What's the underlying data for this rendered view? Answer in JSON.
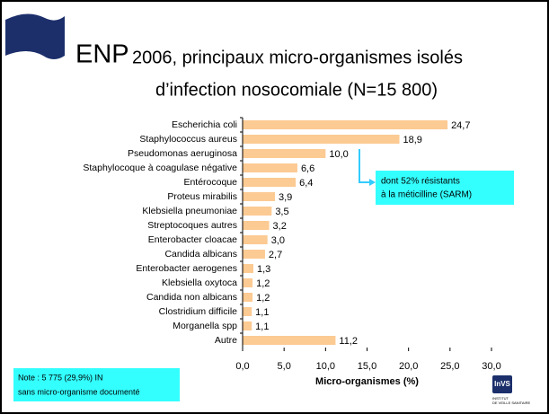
{
  "title": {
    "lead": "ENP",
    "line1": "2006, principaux micro-organismes isolés",
    "line2": "d’infection nosocomiale (N=15 800)"
  },
  "chart_data": {
    "type": "barh",
    "categories": [
      "Escherichia coli",
      "Staphylococcus aureus",
      "Pseudomonas aeruginosa",
      "Staphylocoque à coagulase négative",
      "Entérocoque",
      "Proteus mirabilis",
      "Klebsiella pneumoniae",
      "Streptocoques autres",
      "Enterobacter cloacae",
      "Candida albicans",
      "Enterobacter aerogenes",
      "Klebsiella oxytoca",
      "Candida non albicans",
      "Clostridium difficile",
      "Morganella spp",
      "Autre"
    ],
    "values": [
      24.7,
      18.9,
      10.0,
      6.6,
      6.4,
      3.9,
      3.5,
      3.2,
      3.0,
      2.7,
      1.3,
      1.2,
      1.2,
      1.1,
      1.1,
      11.2
    ],
    "value_labels": [
      "24,7",
      "18,9",
      "10,0",
      "6,6",
      "6,4",
      "3,9",
      "3,5",
      "3,2",
      "3,0",
      "2,7",
      "1,3",
      "1,2",
      "1,2",
      "1,1",
      "1,1",
      "11,2"
    ],
    "color": "#fcca93",
    "xlabel": "Micro-organismes (%)",
    "xlim": [
      0,
      30
    ],
    "xticks": [
      {
        "value": 0,
        "label": "0,0"
      },
      {
        "value": 5,
        "label": "5,0"
      },
      {
        "value": 10,
        "label": "10,0"
      },
      {
        "value": 15,
        "label": "15,0"
      },
      {
        "value": 20,
        "label": "20,0"
      },
      {
        "value": 25,
        "label": "25,0"
      },
      {
        "value": 30,
        "label": "30,0"
      }
    ],
    "annotation": {
      "line1": "dont 52% résistants",
      "line2": "à la méticilline (SARM)"
    }
  },
  "note": {
    "line1": "Note : 5 775 (29,9%) IN",
    "line2": "sans micro-organisme documenté"
  },
  "logo": {
    "mark": "InVS",
    "line1": "INSTITUT",
    "line2": "DE VEILLE SANITAIRE"
  }
}
